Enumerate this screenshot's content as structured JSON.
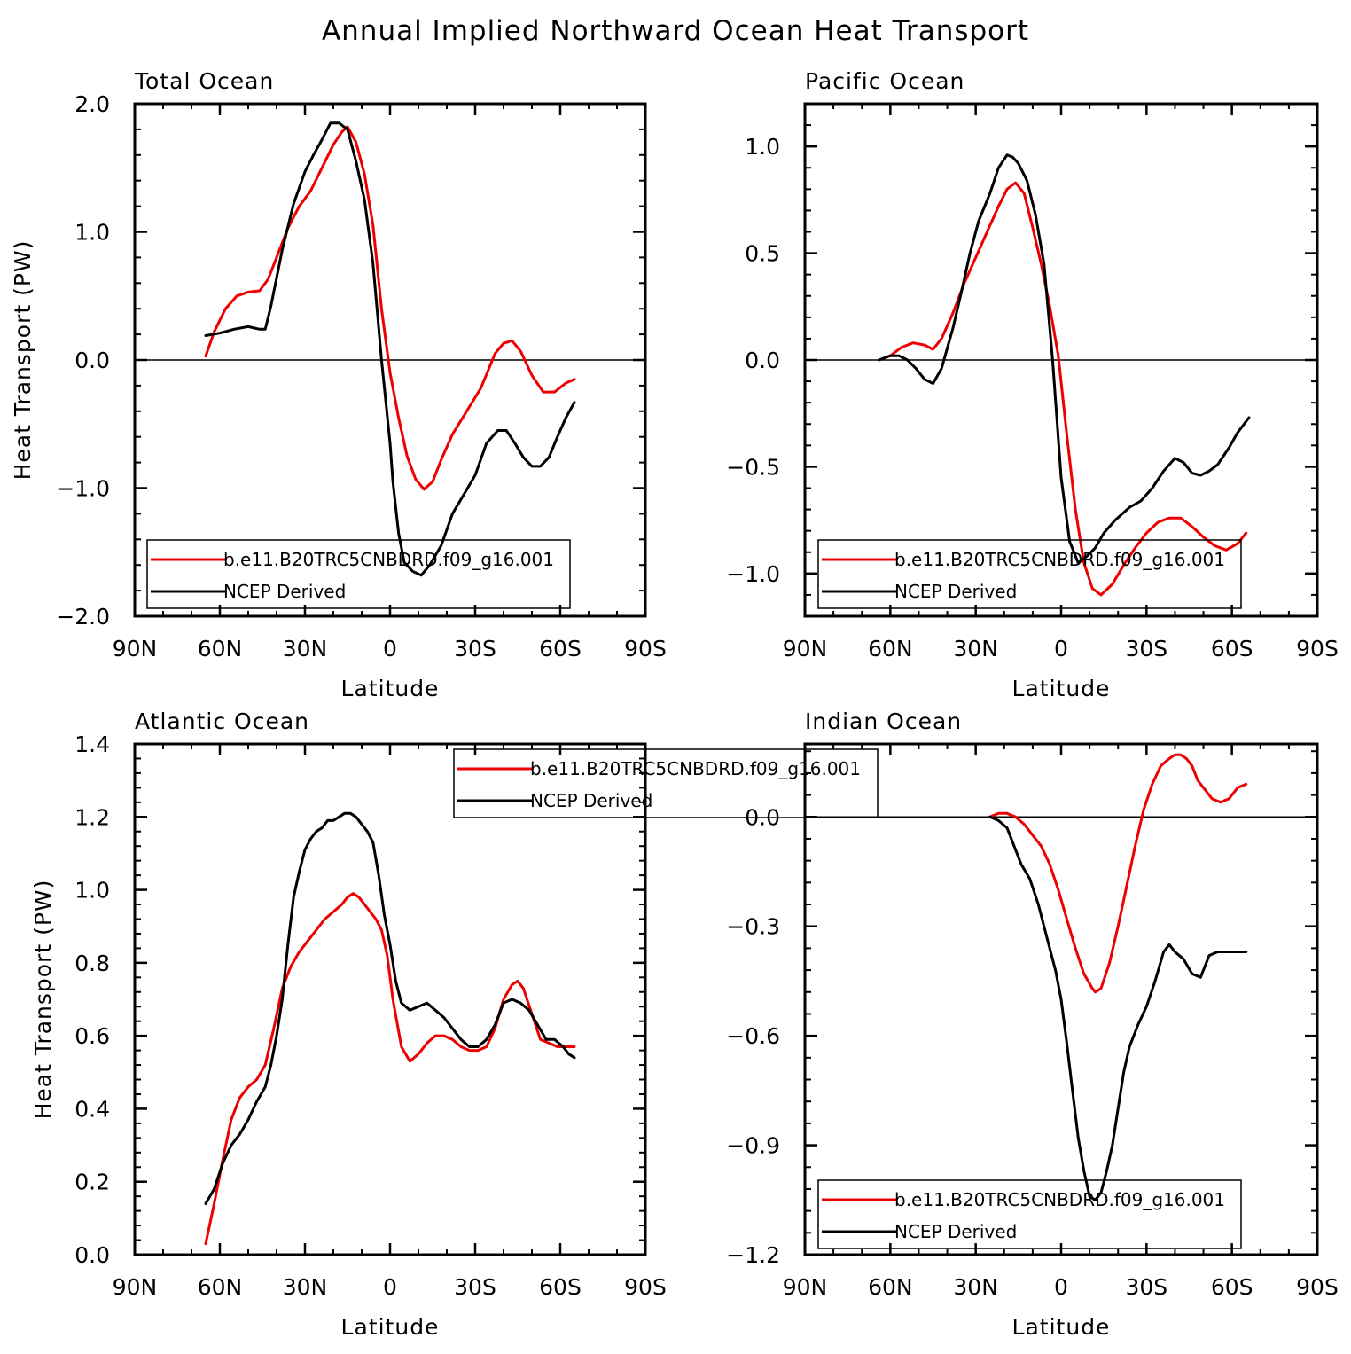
{
  "figure": {
    "title": "Annual Implied Northward Ocean Heat Transport"
  },
  "colors": {
    "model": "#ee0000",
    "obs": "#000000"
  },
  "chart_data": [
    {
      "type": "line",
      "title": "Total Ocean",
      "xlabel": "Latitude",
      "ylabel": "Heat Transport (PW)",
      "xlim": [
        90,
        -90
      ],
      "ylim": [
        -2.0,
        2.0
      ],
      "xticks": [
        90,
        60,
        30,
        0,
        -30,
        -60,
        -90
      ],
      "xtick_labels": [
        "90N",
        "60N",
        "30N",
        "0",
        "30S",
        "60S",
        "90S"
      ],
      "yticks": [
        -2.0,
        -1.0,
        0.0,
        1.0,
        2.0
      ],
      "ytick_labels": [
        "−2.0",
        "−1.0",
        "0.0",
        "1.0",
        "2.0"
      ],
      "zero_line": true,
      "legend": {
        "placement": "bottom-left",
        "entries": [
          "b.e11.B20TRC5CNBDRD.f09_g16.001",
          "NCEP Derived"
        ]
      },
      "series": [
        {
          "name": "b.e11.B20TRC5CNBDRD.f09_g16.001",
          "color": "#ee0000",
          "x": [
            65,
            62,
            58,
            54,
            50,
            46,
            43,
            40,
            36,
            32,
            28,
            24,
            20,
            17,
            15,
            12,
            9,
            6,
            3,
            0,
            -3,
            -6,
            -9,
            -12,
            -15,
            -18,
            -22,
            -27,
            -32,
            -37,
            -40,
            -43,
            -46,
            -50,
            -54,
            -58,
            -62,
            -65
          ],
          "y": [
            0.03,
            0.22,
            0.4,
            0.5,
            0.53,
            0.54,
            0.63,
            0.8,
            1.03,
            1.2,
            1.32,
            1.5,
            1.68,
            1.78,
            1.82,
            1.7,
            1.45,
            1.05,
            0.4,
            -0.1,
            -0.45,
            -0.75,
            -0.93,
            -1.01,
            -0.95,
            -0.78,
            -0.58,
            -0.4,
            -0.22,
            0.05,
            0.13,
            0.15,
            0.07,
            -0.12,
            -0.25,
            -0.25,
            -0.18,
            -0.15
          ]
        },
        {
          "name": "NCEP Derived",
          "color": "#000000",
          "x": [
            65,
            60,
            55,
            50,
            46,
            44,
            42,
            38,
            34,
            30,
            27,
            24,
            21,
            18,
            15,
            12,
            9,
            6,
            3,
            0,
            -1,
            -3,
            -5,
            -8,
            -11,
            -14,
            -18,
            -22,
            -26,
            -30,
            -34,
            -38,
            -41,
            -44,
            -47,
            -50,
            -53,
            -56,
            -59,
            -62,
            -65
          ],
          "y": [
            0.19,
            0.21,
            0.24,
            0.26,
            0.24,
            0.24,
            0.42,
            0.86,
            1.22,
            1.47,
            1.6,
            1.72,
            1.85,
            1.85,
            1.8,
            1.55,
            1.25,
            0.75,
            0.0,
            -0.65,
            -0.95,
            -1.35,
            -1.58,
            -1.65,
            -1.68,
            -1.6,
            -1.45,
            -1.2,
            -1.05,
            -0.9,
            -0.65,
            -0.55,
            -0.55,
            -0.65,
            -0.76,
            -0.83,
            -0.83,
            -0.76,
            -0.6,
            -0.45,
            -0.33
          ]
        }
      ]
    },
    {
      "type": "line",
      "title": "Pacific Ocean",
      "xlabel": "Latitude",
      "ylabel": "",
      "xlim": [
        90,
        -90
      ],
      "ylim": [
        -1.2,
        1.2
      ],
      "xticks": [
        90,
        60,
        30,
        0,
        -30,
        -60,
        -90
      ],
      "xtick_labels": [
        "90N",
        "60N",
        "30N",
        "0",
        "30S",
        "60S",
        "90S"
      ],
      "yticks": [
        -1.0,
        -0.5,
        0.0,
        0.5,
        1.0
      ],
      "ytick_labels": [
        "−1.0",
        "−0.5",
        "0.0",
        "0.5",
        "1.0"
      ],
      "zero_line": true,
      "legend": {
        "placement": "bottom-left",
        "entries": [
          "b.e11.B20TRC5CNBDRD.f09_g16.001",
          "NCEP Derived"
        ]
      },
      "series": [
        {
          "name": "b.e11.B20TRC5CNBDRD.f09_g16.001",
          "color": "#ee0000",
          "x": [
            64,
            60,
            56,
            52,
            48,
            45,
            42,
            38,
            34,
            30,
            26,
            22,
            19,
            16,
            13,
            10,
            7,
            4,
            1,
            -2,
            -5,
            -8,
            -11,
            -14,
            -18,
            -22,
            -26,
            -30,
            -34,
            -38,
            -42,
            -46,
            -50,
            -54,
            -58,
            -62,
            -65
          ],
          "y": [
            0.0,
            0.02,
            0.06,
            0.08,
            0.07,
            0.05,
            0.1,
            0.22,
            0.36,
            0.48,
            0.6,
            0.72,
            0.8,
            0.83,
            0.78,
            0.62,
            0.45,
            0.25,
            0.02,
            -0.35,
            -0.7,
            -0.95,
            -1.07,
            -1.1,
            -1.05,
            -0.96,
            -0.88,
            -0.81,
            -0.76,
            -0.74,
            -0.74,
            -0.78,
            -0.83,
            -0.87,
            -0.89,
            -0.86,
            -0.81
          ]
        },
        {
          "name": "NCEP Derived",
          "color": "#000000",
          "x": [
            64,
            60,
            57,
            54,
            51,
            48,
            45,
            42,
            38,
            35,
            32,
            29,
            25,
            22,
            19,
            17,
            15,
            12,
            9,
            6,
            3,
            0,
            -3,
            -6,
            -9,
            -12,
            -15,
            -19,
            -24,
            -28,
            -32,
            -36,
            -40,
            -43,
            -46,
            -49,
            -52,
            -55,
            -59,
            -62,
            -66
          ],
          "y": [
            0.0,
            0.02,
            0.02,
            0.0,
            -0.04,
            -0.09,
            -0.11,
            -0.04,
            0.15,
            0.32,
            0.5,
            0.65,
            0.78,
            0.9,
            0.96,
            0.95,
            0.92,
            0.84,
            0.68,
            0.45,
            0.0,
            -0.55,
            -0.85,
            -0.95,
            -0.92,
            -0.88,
            -0.81,
            -0.75,
            -0.69,
            -0.66,
            -0.6,
            -0.52,
            -0.46,
            -0.48,
            -0.53,
            -0.54,
            -0.52,
            -0.49,
            -0.41,
            -0.34,
            -0.27
          ]
        }
      ]
    },
    {
      "type": "line",
      "title": "Atlantic Ocean",
      "xlabel": "Latitude",
      "ylabel": "Heat Transport (PW)",
      "xlim": [
        90,
        -90
      ],
      "ylim": [
        0.0,
        1.4
      ],
      "xticks": [
        90,
        60,
        30,
        0,
        -30,
        -60,
        -90
      ],
      "xtick_labels": [
        "90N",
        "60N",
        "30N",
        "0",
        "30S",
        "60S",
        "90S"
      ],
      "yticks": [
        0.0,
        0.2,
        0.4,
        0.6,
        0.8,
        1.0,
        1.2,
        1.4
      ],
      "ytick_labels": [
        "0.0",
        "0.2",
        "0.4",
        "0.6",
        "0.8",
        "1.0",
        "1.2",
        "1.4"
      ],
      "zero_line": false,
      "legend": {
        "placement": "top-center",
        "entries": [
          "b.e11.B20TRC5CNBDRD.f09_g16.001",
          "NCEP Derived"
        ]
      },
      "series": [
        {
          "name": "b.e11.B20TRC5CNBDRD.f09_g16.001",
          "color": "#ee0000",
          "x": [
            65,
            62,
            59,
            56,
            53,
            50,
            47,
            44,
            41,
            38,
            35,
            32,
            29,
            26,
            23,
            20,
            17,
            15,
            13,
            11,
            9,
            7,
            5,
            3,
            1,
            -1,
            -4,
            -7,
            -10,
            -13,
            -16,
            -19,
            -22,
            -25,
            -28,
            -31,
            -34,
            -37,
            -40,
            -43,
            -45,
            -47,
            -50,
            -53,
            -56,
            -59,
            -62,
            -65
          ],
          "y": [
            0.03,
            0.14,
            0.26,
            0.37,
            0.43,
            0.46,
            0.48,
            0.52,
            0.62,
            0.73,
            0.79,
            0.83,
            0.86,
            0.89,
            0.92,
            0.94,
            0.96,
            0.98,
            0.99,
            0.98,
            0.96,
            0.94,
            0.92,
            0.89,
            0.82,
            0.7,
            0.57,
            0.53,
            0.55,
            0.58,
            0.6,
            0.6,
            0.59,
            0.57,
            0.56,
            0.56,
            0.57,
            0.62,
            0.7,
            0.74,
            0.75,
            0.73,
            0.66,
            0.59,
            0.58,
            0.57,
            0.57,
            0.57
          ]
        },
        {
          "name": "NCEP Derived",
          "color": "#000000",
          "x": [
            65,
            62,
            59,
            56,
            53,
            50,
            47,
            44,
            42,
            40,
            38,
            36,
            34,
            32,
            30,
            28,
            26,
            24,
            22,
            20,
            18,
            16,
            14,
            12,
            10,
            8,
            6,
            4,
            2,
            0,
            -2,
            -4,
            -7,
            -10,
            -13,
            -16,
            -19,
            -22,
            -25,
            -28,
            -31,
            -34,
            -37,
            -40,
            -43,
            -46,
            -49,
            -52,
            -55,
            -58,
            -61,
            -63,
            -65
          ],
          "y": [
            0.14,
            0.18,
            0.25,
            0.3,
            0.33,
            0.37,
            0.42,
            0.46,
            0.52,
            0.6,
            0.7,
            0.85,
            0.98,
            1.05,
            1.11,
            1.14,
            1.16,
            1.17,
            1.19,
            1.19,
            1.2,
            1.21,
            1.21,
            1.2,
            1.18,
            1.16,
            1.13,
            1.04,
            0.93,
            0.85,
            0.75,
            0.69,
            0.67,
            0.68,
            0.69,
            0.67,
            0.65,
            0.62,
            0.59,
            0.57,
            0.57,
            0.59,
            0.63,
            0.69,
            0.7,
            0.69,
            0.67,
            0.63,
            0.59,
            0.59,
            0.57,
            0.55,
            0.54
          ]
        }
      ]
    },
    {
      "type": "line",
      "title": "Indian Ocean",
      "xlabel": "Latitude",
      "ylabel": "",
      "xlim": [
        90,
        -90
      ],
      "ylim": [
        -1.2,
        0.2
      ],
      "xticks": [
        90,
        60,
        30,
        0,
        -30,
        -60,
        -90
      ],
      "xtick_labels": [
        "90N",
        "60N",
        "30N",
        "0",
        "30S",
        "60S",
        "90S"
      ],
      "yticks": [
        -1.2,
        -0.9,
        -0.6,
        -0.3,
        0.0
      ],
      "ytick_labels": [
        "−1.2",
        "−0.9",
        "−0.6",
        "−0.3",
        "0.0"
      ],
      "zero_line": true,
      "legend": {
        "placement": "bottom-left",
        "entries": [
          "b.e11.B20TRC5CNBDRD.f09_g16.001",
          "NCEP Derived"
        ]
      },
      "series": [
        {
          "name": "b.e11.B20TRC5CNBDRD.f09_g16.001",
          "color": "#ee0000",
          "x": [
            25,
            22,
            19,
            16,
            13,
            10,
            7,
            4,
            1,
            -2,
            -5,
            -8,
            -11,
            -12,
            -14,
            -17,
            -20,
            -23,
            -26,
            -29,
            -32,
            -35,
            -38,
            -40,
            -42,
            -44,
            -46,
            -48,
            -50,
            -53,
            -56,
            -59,
            -62,
            -65
          ],
          "y": [
            0.0,
            0.01,
            0.01,
            0.0,
            -0.02,
            -0.05,
            -0.08,
            -0.13,
            -0.2,
            -0.28,
            -0.36,
            -0.43,
            -0.47,
            -0.48,
            -0.47,
            -0.4,
            -0.3,
            -0.19,
            -0.08,
            0.02,
            0.09,
            0.14,
            0.16,
            0.17,
            0.17,
            0.16,
            0.14,
            0.1,
            0.08,
            0.05,
            0.04,
            0.05,
            0.08,
            0.09
          ]
        },
        {
          "name": "NCEP Derived",
          "color": "#000000",
          "x": [
            25,
            22,
            19,
            17,
            14,
            11,
            8,
            5,
            2,
            0,
            -2,
            -4,
            -6,
            -8,
            -10,
            -12,
            -14,
            -16,
            -18,
            -20,
            -22,
            -24,
            -27,
            -30,
            -33,
            -36,
            -38,
            -40,
            -43,
            -46,
            -49,
            -52,
            -55,
            -57,
            -60,
            -63,
            -65
          ],
          "y": [
            0.0,
            -0.01,
            -0.03,
            -0.07,
            -0.13,
            -0.17,
            -0.24,
            -0.33,
            -0.42,
            -0.5,
            -0.62,
            -0.75,
            -0.88,
            -0.97,
            -1.04,
            -1.05,
            -1.03,
            -0.97,
            -0.9,
            -0.8,
            -0.7,
            -0.63,
            -0.57,
            -0.52,
            -0.45,
            -0.37,
            -0.35,
            -0.37,
            -0.39,
            -0.43,
            -0.44,
            -0.38,
            -0.37,
            -0.37,
            -0.37,
            -0.37,
            -0.37
          ]
        }
      ]
    }
  ]
}
